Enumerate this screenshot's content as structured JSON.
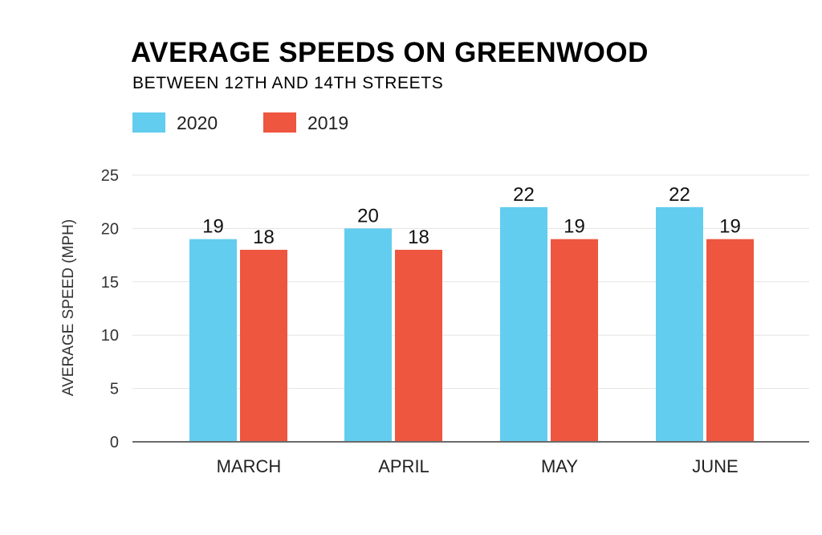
{
  "colors": {
    "series_2020": "#62cdee",
    "series_2019": "#ee5640"
  },
  "chart_data": {
    "type": "bar",
    "title": "AVERAGE SPEEDS ON GREENWOOD",
    "subtitle": "BETWEEN 12TH AND 14TH STREETS",
    "xlabel": "",
    "ylabel": "AVERAGE SPEED (MPH)",
    "ylim": [
      0,
      25
    ],
    "yticks": [
      0,
      5,
      10,
      15,
      20,
      25
    ],
    "grid": true,
    "legend_position": "top-left",
    "categories": [
      "MARCH",
      "APRIL",
      "MAY",
      "JUNE"
    ],
    "series": [
      {
        "name": "2020",
        "values": [
          19,
          20,
          22,
          22
        ]
      },
      {
        "name": "2019",
        "values": [
          18,
          18,
          19,
          19
        ]
      }
    ]
  }
}
